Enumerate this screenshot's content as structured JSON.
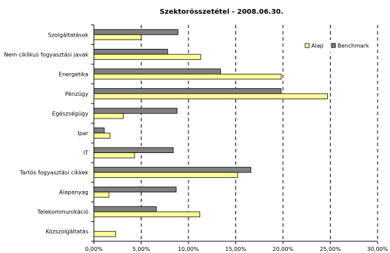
{
  "chart_data": {
    "type": "bar",
    "orientation": "horizontal",
    "title": "Szektorösszetétel - 2008.06.30.",
    "categories": [
      "Szolgáltatások",
      "Nem ciklikus fogyasztási javak",
      "Energetika",
      "Pénzügy",
      "Egészségügy",
      "Ipar",
      "IT",
      "Tartós fogyasztási cikkek",
      "Alapanyag",
      "Telekommunikáció",
      "Közszolgáltatás"
    ],
    "series": [
      {
        "name": "Benchmark",
        "color": "#808080",
        "values": [
          8.9,
          7.8,
          13.4,
          19.8,
          8.8,
          1.1,
          8.4,
          16.6,
          8.7,
          6.6,
          0.0
        ]
      },
      {
        "name": "Alap",
        "color": "#FFFF99",
        "values": [
          5.0,
          11.3,
          19.8,
          24.7,
          3.1,
          1.7,
          4.3,
          15.2,
          1.6,
          11.2,
          2.3
        ]
      }
    ],
    "xlim": [
      0,
      30
    ],
    "xticks": [
      "0,00%",
      "5,00%",
      "10,00%",
      "15,00%",
      "20,00%",
      "25,00%",
      "30,00%"
    ],
    "grid": "vertical dashed",
    "legend_position": "top-right",
    "legend": [
      "Alap",
      "Benchmark"
    ]
  }
}
